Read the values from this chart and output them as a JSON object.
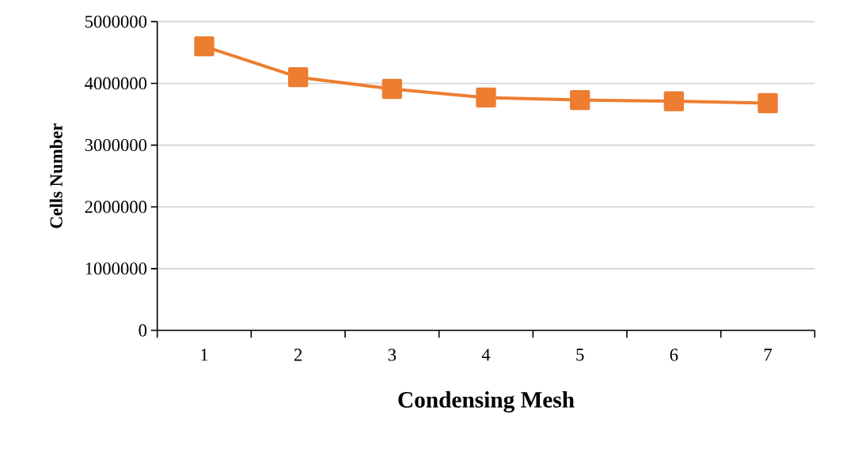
{
  "chart_data": {
    "type": "line",
    "xlabel": "Condensing Mesh",
    "ylabel": "Cells Number",
    "categories": [
      "1",
      "2",
      "3",
      "4",
      "5",
      "6",
      "7"
    ],
    "series": [
      {
        "color": "#ed7d31",
        "values": [
          4600000,
          4100000,
          3910000,
          3770000,
          3730000,
          3710000,
          3680000
        ]
      }
    ],
    "ylim": [
      0,
      5000000
    ],
    "yticks": [
      0,
      1000000,
      2000000,
      3000000,
      4000000,
      5000000
    ],
    "grid": "y",
    "marker": "square",
    "line_style": "solid"
  }
}
